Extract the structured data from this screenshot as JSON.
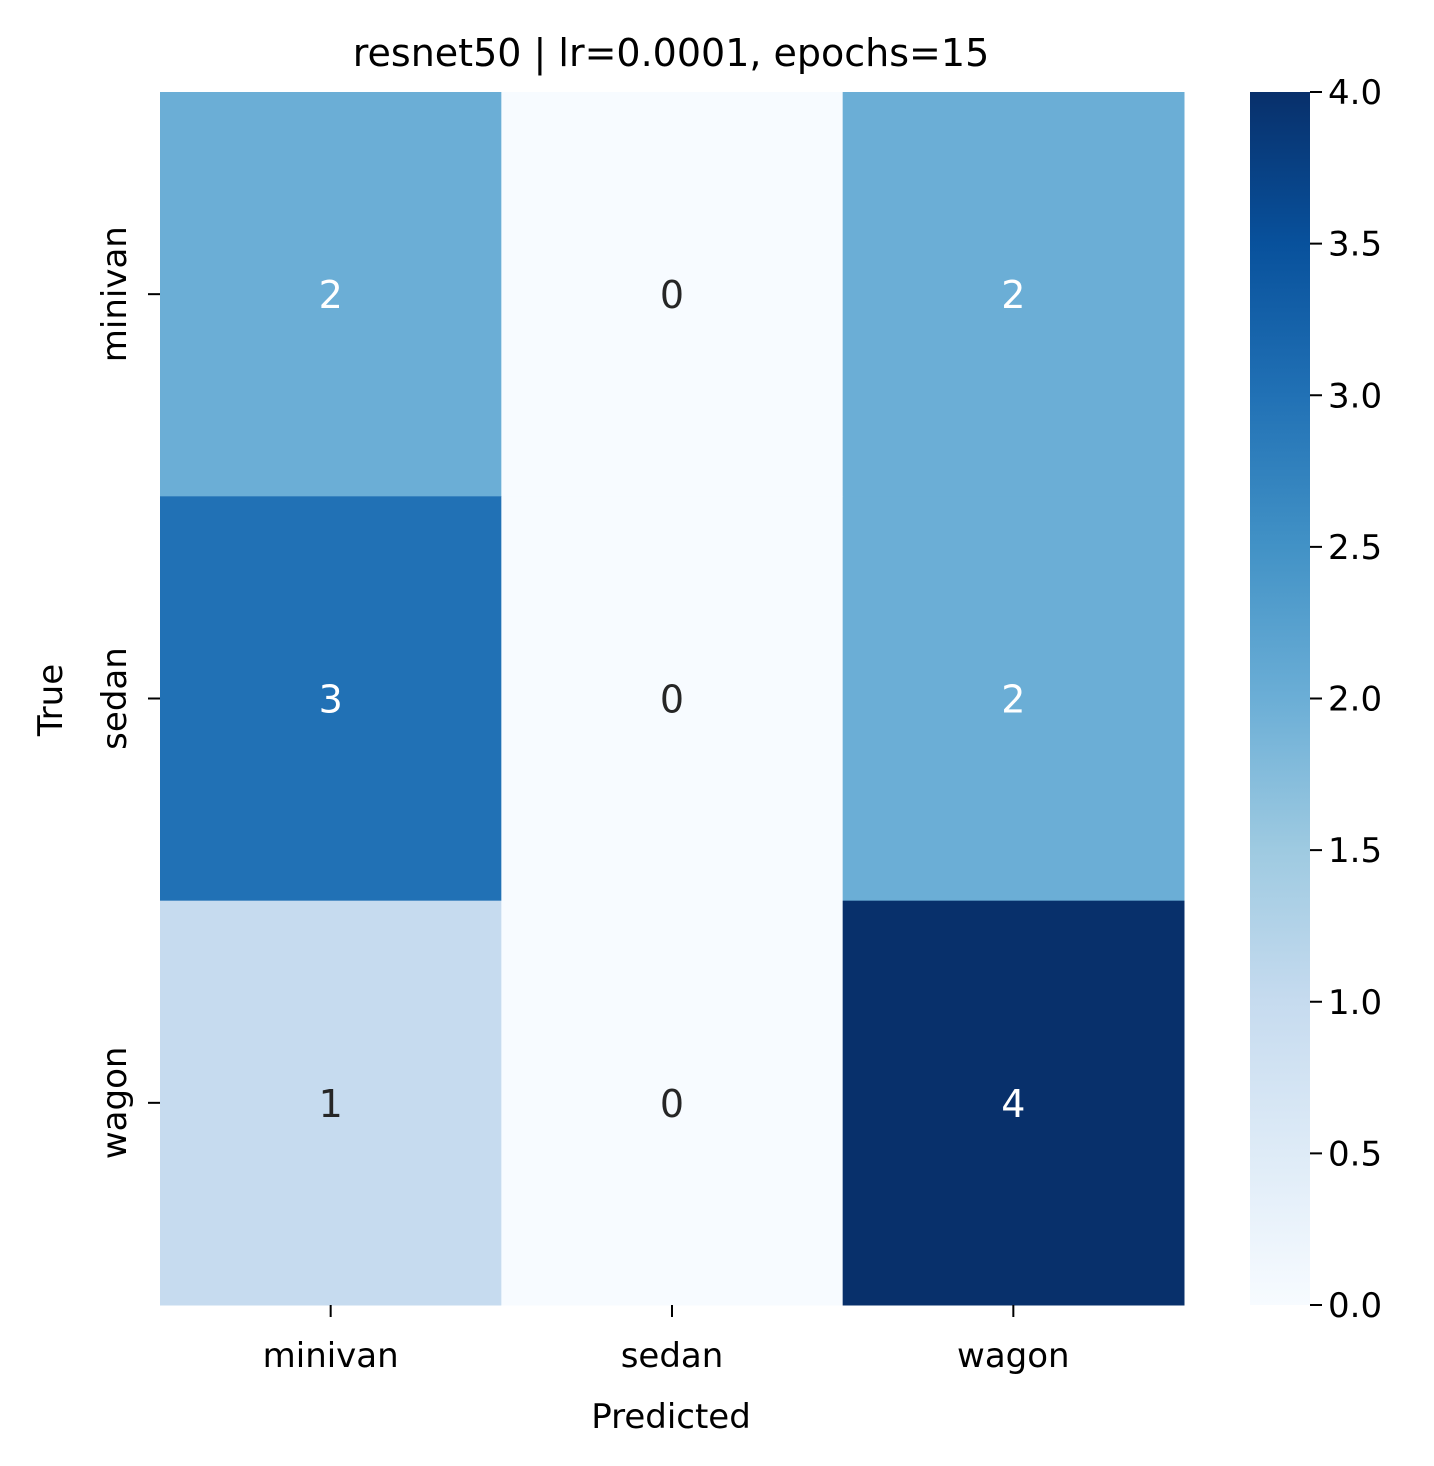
{
  "chart_data": {
    "type": "heatmap",
    "title": "resnet50 | lr=0.0001, epochs=15",
    "xlabel": "Predicted",
    "ylabel": "True",
    "x_categories": [
      "minivan",
      "sedan",
      "wagon"
    ],
    "y_categories": [
      "minivan",
      "sedan",
      "wagon"
    ],
    "values": [
      [
        2,
        0,
        2
      ],
      [
        3,
        0,
        2
      ],
      [
        1,
        0,
        4
      ]
    ],
    "colorbar": {
      "range": [
        0,
        4
      ],
      "ticks": [
        "0.0",
        "0.5",
        "1.0",
        "1.5",
        "2.0",
        "2.5",
        "3.0",
        "3.5",
        "4.0"
      ],
      "colormap": "Blues"
    },
    "grid": false
  }
}
